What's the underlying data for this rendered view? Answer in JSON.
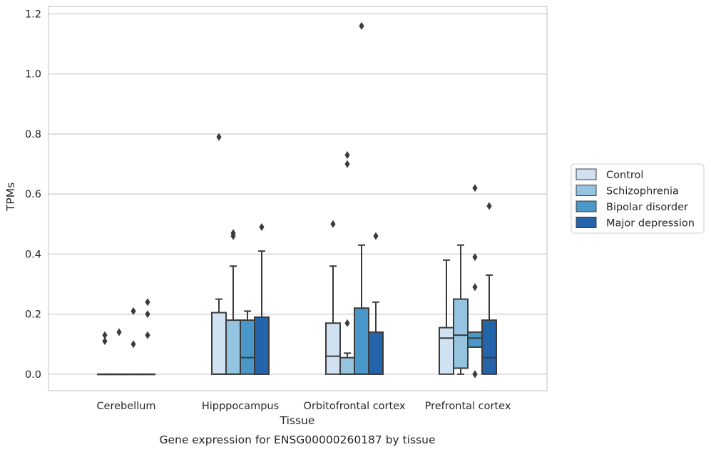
{
  "caption": "Gene expression for ENSG00000260187 by tissue",
  "chart_data": {
    "type": "box",
    "title": "",
    "xlabel": "Tissue",
    "ylabel": "TPMs",
    "ylim": [
      -0.055,
      1.225
    ],
    "yticks": [
      "0.0",
      "0.2",
      "0.4",
      "0.6",
      "0.8",
      "1.0",
      "1.2"
    ],
    "grid": "horizontal",
    "legend_position": "right",
    "categories": [
      "Cerebellum",
      "Hipppocampus",
      "Orbitofrontal cortex",
      "Prefrontal cortex"
    ],
    "series": [
      {
        "name": "Control",
        "color": "#d0e1f2",
        "boxes": [
          {
            "q1": 0,
            "median": 0,
            "q3": 0,
            "whisker_low": 0,
            "whisker_high": 0,
            "outliers": [
              0.11,
              0.13
            ]
          },
          {
            "q1": 0,
            "median": 0,
            "q3": 0.205,
            "whisker_low": 0,
            "whisker_high": 0.25,
            "outliers": [
              0.79
            ]
          },
          {
            "q1": 0,
            "median": 0.06,
            "q3": 0.17,
            "whisker_low": 0,
            "whisker_high": 0.36,
            "outliers": [
              0.5
            ]
          },
          {
            "q1": 0,
            "median": 0.12,
            "q3": 0.155,
            "whisker_low": 0,
            "whisker_high": 0.38,
            "outliers": []
          }
        ]
      },
      {
        "name": "Schizophrenia",
        "color": "#94c4df",
        "boxes": [
          {
            "q1": 0,
            "median": 0,
            "q3": 0,
            "whisker_low": 0,
            "whisker_high": 0,
            "outliers": [
              0.14
            ]
          },
          {
            "q1": 0,
            "median": 0,
            "q3": 0.18,
            "whisker_low": 0,
            "whisker_high": 0.36,
            "outliers": [
              0.46,
              0.47
            ]
          },
          {
            "q1": 0,
            "median": 0,
            "q3": 0.055,
            "whisker_low": 0,
            "whisker_high": 0.07,
            "outliers": [
              0.17,
              0.7,
              0.73
            ]
          },
          {
            "q1": 0.02,
            "median": 0.13,
            "q3": 0.25,
            "whisker_low": 0,
            "whisker_high": 0.43,
            "outliers": []
          }
        ]
      },
      {
        "name": "Bipolar disorder",
        "color": "#4a98c9",
        "boxes": [
          {
            "q1": 0,
            "median": 0,
            "q3": 0,
            "whisker_low": 0,
            "whisker_high": 0,
            "outliers": [
              0.1,
              0.21
            ]
          },
          {
            "q1": 0,
            "median": 0.055,
            "q3": 0.18,
            "whisker_low": 0,
            "whisker_high": 0.21,
            "outliers": []
          },
          {
            "q1": 0,
            "median": 0,
            "q3": 0.22,
            "whisker_low": 0,
            "whisker_high": 0.43,
            "outliers": [
              1.16
            ]
          },
          {
            "q1": 0.09,
            "median": 0.12,
            "q3": 0.14,
            "whisker_low": 0.09,
            "whisker_high": 0.14,
            "outliers": [
              0,
              0,
              0.29,
              0.39,
              0.62
            ]
          }
        ]
      },
      {
        "name": "Major depression",
        "color": "#2464aa",
        "boxes": [
          {
            "q1": 0,
            "median": 0,
            "q3": 0,
            "whisker_low": 0,
            "whisker_high": 0,
            "outliers": [
              0.13,
              0.2,
              0.24
            ]
          },
          {
            "q1": 0,
            "median": 0,
            "q3": 0.19,
            "whisker_low": 0,
            "whisker_high": 0.41,
            "outliers": [
              0.49
            ]
          },
          {
            "q1": 0,
            "median": 0,
            "q3": 0.14,
            "whisker_low": 0,
            "whisker_high": 0.24,
            "outliers": [
              0.46
            ]
          },
          {
            "q1": 0,
            "median": 0.055,
            "q3": 0.18,
            "whisker_low": 0,
            "whisker_high": 0.33,
            "outliers": [
              0.56
            ]
          }
        ]
      }
    ]
  }
}
